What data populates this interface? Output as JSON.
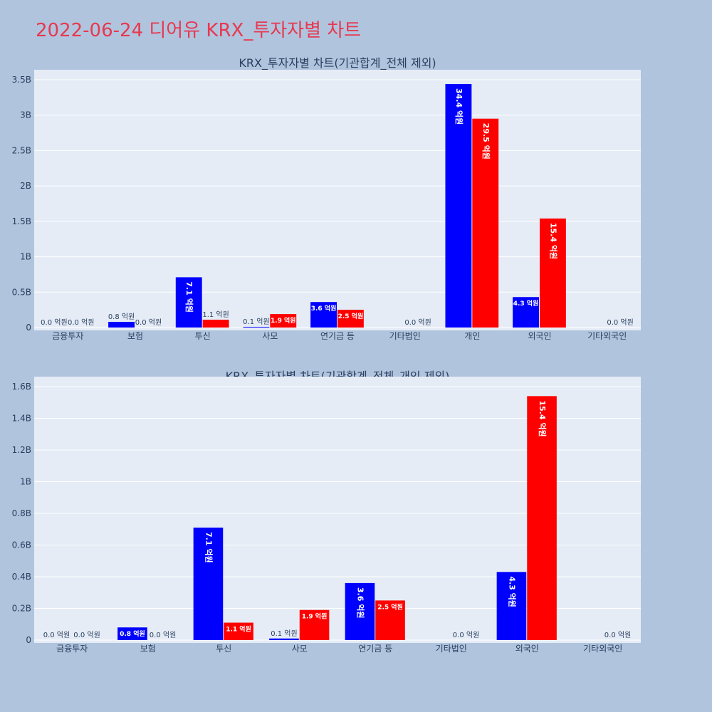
{
  "page": {
    "title": "2022-06-24 디어유 KRX_투자자별 차트"
  },
  "colors": {
    "series_1": "#0000ff",
    "series_2": "#ff0000",
    "title": "#e8384f",
    "page_background": "#b0c4de",
    "plot_background": "#e5ecf6"
  },
  "chart_data": [
    {
      "type": "bar",
      "title": "KRX_투자자별 차트(기관합계_전체 제외)",
      "xlabel": "",
      "ylabel": "",
      "ylim": [
        0,
        3500000000
      ],
      "yticks": [
        0,
        500000000,
        1000000000,
        1500000000,
        2000000000,
        2500000000,
        3000000000,
        3500000000
      ],
      "ytick_labels": [
        "0",
        "0.5B",
        "1B",
        "1.5B",
        "2B",
        "2.5B",
        "3B",
        "3.5B"
      ],
      "categories": [
        "금융투자",
        "보험",
        "투신",
        "사모",
        "연기금 등",
        "기타법인",
        "개인",
        "외국인",
        "기타외국인"
      ],
      "grid": true,
      "legend": "none",
      "series": [
        {
          "color": "#0000ff",
          "values": [
            0,
            80000000,
            710000000,
            10000000,
            360000000,
            0,
            3440000000,
            430000000,
            0
          ],
          "labels": [
            "0.0 억원",
            "0.8 억원",
            "7.1 억원",
            "0.1 억원",
            "3.6 억원",
            "",
            "34.4 억원",
            "4.3 억원",
            ""
          ]
        },
        {
          "color": "#ff0000",
          "values": [
            0,
            0,
            110000000,
            190000000,
            250000000,
            0,
            2950000000,
            1540000000,
            0
          ],
          "labels": [
            "0.0 억원",
            "0.0 억원",
            "1.1 억원",
            "1.9 억원",
            "2.5 억원",
            "0.0 억원",
            "29.5 억원",
            "15.4 억원",
            "0.0 억원"
          ]
        }
      ]
    },
    {
      "type": "bar",
      "title": "KRX_투자자별 차트(기관합계_전체_개인 제외)",
      "xlabel": "",
      "ylabel": "",
      "ylim": [
        0,
        1600000000
      ],
      "yticks": [
        0,
        200000000,
        400000000,
        600000000,
        800000000,
        1000000000,
        1200000000,
        1400000000,
        1600000000
      ],
      "ytick_labels": [
        "0",
        "0.2B",
        "0.4B",
        "0.6B",
        "0.8B",
        "1B",
        "1.2B",
        "1.4B",
        "1.6B"
      ],
      "categories": [
        "금융투자",
        "보험",
        "투신",
        "사모",
        "연기금 등",
        "기타법인",
        "외국인",
        "기타외국인"
      ],
      "grid": true,
      "legend": "none",
      "series": [
        {
          "color": "#0000ff",
          "values": [
            0,
            80000000,
            710000000,
            10000000,
            360000000,
            0,
            430000000,
            0
          ],
          "labels": [
            "0.0 억원",
            "0.8 억원",
            "7.1 억원",
            "0.1 억원",
            "3.6 억원",
            "",
            "4.3 억원",
            ""
          ]
        },
        {
          "color": "#ff0000",
          "values": [
            0,
            0,
            110000000,
            190000000,
            250000000,
            0,
            1540000000,
            0
          ],
          "labels": [
            "0.0 억원",
            "0.0 억원",
            "1.1 억원",
            "1.9 억원",
            "2.5 억원",
            "0.0 억원",
            "15.4 억원",
            "0.0 억원"
          ]
        }
      ]
    }
  ]
}
